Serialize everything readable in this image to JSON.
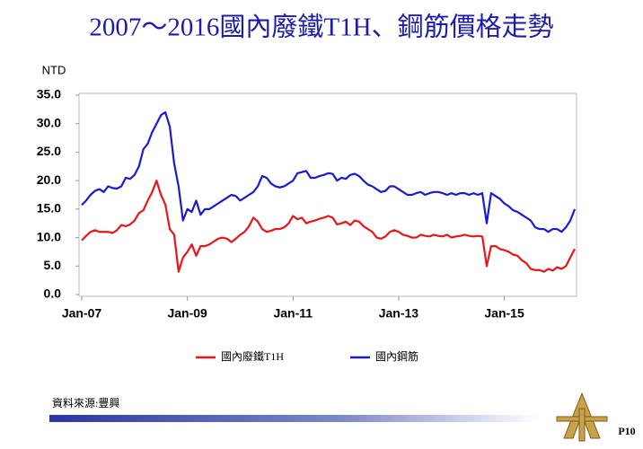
{
  "chart_data": {
    "type": "line",
    "title": "2007～2016國內廢鐵T1H、鋼筋價格走勢",
    "y_label": "NTD",
    "categories": [
      "Jan-07",
      null,
      null,
      null,
      null,
      null,
      null,
      null,
      null,
      null,
      null,
      null,
      null,
      null,
      null,
      null,
      null,
      null,
      null,
      null,
      null,
      null,
      null,
      null,
      "Jan-09",
      null,
      null,
      null,
      null,
      null,
      null,
      null,
      null,
      null,
      null,
      null,
      null,
      null,
      null,
      null,
      null,
      null,
      null,
      null,
      null,
      null,
      null,
      null,
      "Jan-11",
      null,
      null,
      null,
      null,
      null,
      null,
      null,
      null,
      null,
      null,
      null,
      null,
      null,
      null,
      null,
      null,
      null,
      null,
      null,
      null,
      null,
      null,
      null,
      "Jan-13",
      null,
      null,
      null,
      null,
      null,
      null,
      null,
      null,
      null,
      null,
      null,
      null,
      null,
      null,
      null,
      null,
      null,
      null,
      null,
      null,
      null,
      null,
      null,
      "Jan-15",
      null,
      null,
      null,
      null,
      null,
      null,
      null,
      null,
      null,
      null,
      null,
      null,
      null,
      null,
      null,
      null
    ],
    "series": [
      {
        "name": "國內廢鐵T1H",
        "color": "#e8161b",
        "values": [
          9.5,
          10.3,
          11.0,
          11.3,
          11.0,
          11.0,
          11.0,
          10.8,
          11.3,
          12.2,
          12.0,
          12.3,
          13.0,
          14.3,
          14.8,
          16.5,
          18.0,
          20.0,
          17.5,
          15.8,
          11.5,
          10.5,
          4.0,
          6.5,
          7.5,
          8.8,
          6.8,
          8.5,
          8.5,
          8.8,
          9.3,
          9.8,
          10.0,
          9.8,
          9.2,
          9.8,
          10.5,
          11.0,
          12.0,
          13.5,
          12.8,
          11.5,
          11.0,
          11.2,
          11.5,
          11.5,
          11.8,
          12.5,
          13.8,
          13.2,
          13.5,
          12.5,
          12.8,
          13.0,
          13.3,
          13.5,
          13.8,
          13.5,
          12.3,
          12.5,
          12.8,
          12.2,
          13.0,
          12.8,
          12.0,
          11.5,
          11.0,
          10.0,
          9.8,
          10.2,
          11.0,
          11.3,
          11.0,
          10.5,
          10.3,
          10.0,
          10.0,
          10.5,
          10.3,
          10.2,
          10.5,
          10.3,
          10.2,
          10.5,
          10.0,
          10.2,
          10.3,
          10.5,
          10.3,
          10.2,
          10.3,
          10.2,
          5.0,
          8.5,
          8.5,
          8.0,
          7.8,
          7.5,
          7.0,
          6.8,
          6.0,
          5.5,
          4.5,
          4.3,
          4.3,
          4.0,
          4.5,
          4.2,
          4.8,
          4.5,
          5.0,
          6.5,
          8.0
        ]
      },
      {
        "name": "國內鋼筋",
        "color": "#1a1ad0",
        "values": [
          15.7,
          16.5,
          17.5,
          18.2,
          18.5,
          18.0,
          19.0,
          18.7,
          18.6,
          19.0,
          20.5,
          20.3,
          21.0,
          22.5,
          25.5,
          26.5,
          28.5,
          30.0,
          31.5,
          32.0,
          29.5,
          23.0,
          19.0,
          13.0,
          15.0,
          14.5,
          16.5,
          14.0,
          15.0,
          15.0,
          15.5,
          16.0,
          16.5,
          17.0,
          17.5,
          17.3,
          16.5,
          17.0,
          17.5,
          18.0,
          19.0,
          20.8,
          20.5,
          19.5,
          19.0,
          18.8,
          19.0,
          19.5,
          20.0,
          21.3,
          21.5,
          21.7,
          20.5,
          20.5,
          20.8,
          21.0,
          21.3,
          21.2,
          20.0,
          20.5,
          20.3,
          21.0,
          21.2,
          20.8,
          20.0,
          19.3,
          19.0,
          18.5,
          18.0,
          18.2,
          19.0,
          19.0,
          18.5,
          18.0,
          17.5,
          17.5,
          17.8,
          18.0,
          17.5,
          17.8,
          18.0,
          18.0,
          17.8,
          17.5,
          17.8,
          17.5,
          17.8,
          17.8,
          17.5,
          17.8,
          17.5,
          17.8,
          12.5,
          17.8,
          17.3,
          16.8,
          16.0,
          15.5,
          14.8,
          14.5,
          14.0,
          13.5,
          13.0,
          11.8,
          11.5,
          11.5,
          11.0,
          11.5,
          11.5,
          11.0,
          11.8,
          13.0,
          15.0
        ]
      }
    ],
    "ylim": [
      0,
      35
    ],
    "yticks": [
      {
        "value": 0,
        "label": "0.0"
      },
      {
        "value": 5,
        "label": "5.0"
      },
      {
        "value": 10,
        "label": "10.0"
      },
      {
        "value": 15,
        "label": "15.0"
      },
      {
        "value": 20,
        "label": "20.0"
      },
      {
        "value": 25,
        "label": "25.0"
      },
      {
        "value": 30,
        "label": "30.0"
      },
      {
        "value": 35,
        "label": "35.0"
      }
    ],
    "grid": false,
    "legend": "bottom"
  },
  "footer": {
    "source": "資料來源:豐興",
    "page": "P10"
  }
}
